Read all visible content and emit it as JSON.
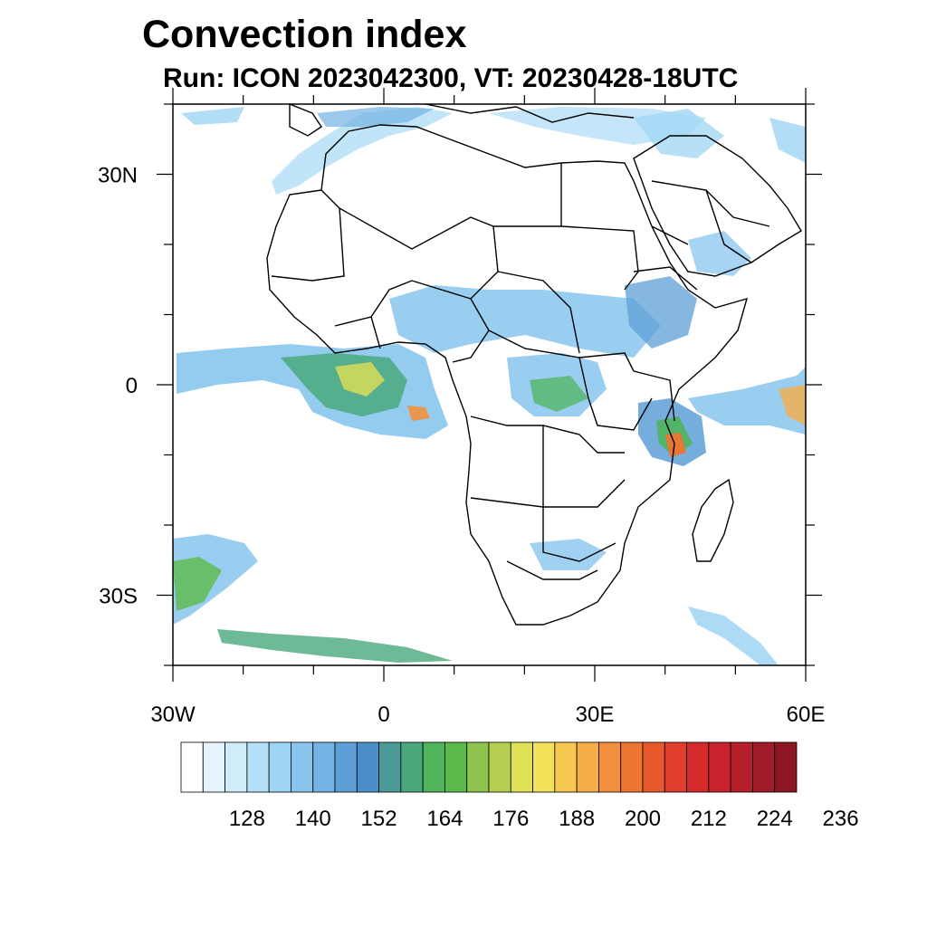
{
  "title": "Convection index",
  "subtitle": "Run: ICON 2023042300,  VT: 20230428-18UTC",
  "axes": {
    "x_ticks": [
      {
        "label": "30W",
        "lon": -30
      },
      {
        "label": "0",
        "lon": 0
      },
      {
        "label": "30E",
        "lon": 30
      },
      {
        "label": "60E",
        "lon": 60
      }
    ],
    "y_ticks": [
      {
        "label": "30N",
        "lat": 30
      },
      {
        "label": "0",
        "lat": 0
      },
      {
        "label": "30S",
        "lat": -30
      }
    ],
    "lon_range": [
      -30,
      60
    ],
    "lat_range": [
      -40,
      40
    ]
  },
  "colorbar": {
    "labels": [
      "128",
      "140",
      "152",
      "164",
      "176",
      "188",
      "200",
      "212",
      "224",
      "236"
    ],
    "colors": [
      "#ffffff",
      "#e6f4fc",
      "#d0ecfa",
      "#b6e0f7",
      "#9fd5f4",
      "#88c6ee",
      "#74b3e4",
      "#5d9fd6",
      "#4b8fc8",
      "#4a9a9a",
      "#4aa87c",
      "#4fb45c",
      "#5cba4a",
      "#8ec44e",
      "#b5d050",
      "#dfe055",
      "#f4e15a",
      "#f6c850",
      "#f5ae47",
      "#f2913d",
      "#ee7432",
      "#e7592c",
      "#e03d2a",
      "#d52a2c",
      "#c8222e",
      "#b51e2b",
      "#a01a27",
      "#8c1722"
    ]
  },
  "map": {
    "description_colors": {
      "ocean": "#ffffff",
      "border": "#000000"
    }
  }
}
